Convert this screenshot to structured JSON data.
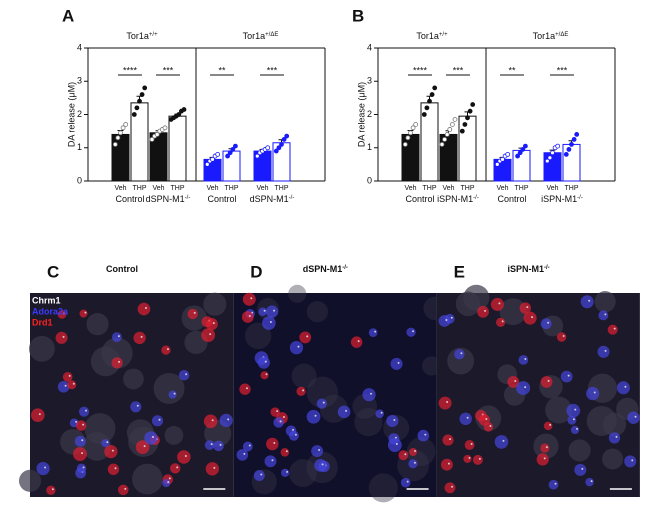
{
  "chart_data": [
    {
      "type": "bar",
      "letter": "A",
      "y_label": "DA release (μM)",
      "ylim": [
        0,
        4
      ],
      "yticks": [
        0,
        1,
        2,
        3,
        4
      ],
      "treatments": [
        "Veh",
        "THP"
      ],
      "groups": [
        {
          "name": "Tor1a",
          "sup": "+/+",
          "color": "#111111",
          "subgroups": [
            {
              "name": "Control",
              "values": [
                1.4,
                2.35
              ],
              "errors": [
                0.12,
                0.2
              ],
              "significance": "****",
              "points": [
                [
                  1.1,
                  1.3,
                  1.45,
                  1.6,
                  1.7
                ],
                [
                  2.0,
                  2.2,
                  2.4,
                  2.6,
                  2.8
                ]
              ]
            },
            {
              "name": "dSPN-M1",
              "sup": "-/-",
              "values": [
                1.45,
                1.95
              ],
              "errors": [
                0.06,
                0.06
              ],
              "significance": "***",
              "points": [
                [
                  1.25,
                  1.35,
                  1.4,
                  1.5,
                  1.55,
                  1.6
                ],
                [
                  1.85,
                  1.9,
                  1.95,
                  2.0,
                  2.1,
                  2.15
                ]
              ]
            }
          ]
        },
        {
          "name": "Tor1a",
          "sup": "+/ΔE",
          "color": "#1a1aff",
          "subgroups": [
            {
              "name": "Control",
              "values": [
                0.65,
                0.9
              ],
              "errors": [
                0.06,
                0.07
              ],
              "significance": "**",
              "points": [
                [
                  0.5,
                  0.6,
                  0.65,
                  0.75,
                  0.8
                ],
                [
                  0.75,
                  0.85,
                  0.95,
                  1.05
                ]
              ]
            },
            {
              "name": "dSPN-M1",
              "sup": "-/-",
              "values": [
                0.9,
                1.15
              ],
              "errors": [
                0.05,
                0.09
              ],
              "significance": "***",
              "points": [
                [
                  0.75,
                  0.85,
                  0.9,
                  0.95,
                  1.0
                ],
                [
                  0.9,
                  1.0,
                  1.1,
                  1.25,
                  1.35
                ]
              ]
            }
          ]
        }
      ]
    },
    {
      "type": "bar",
      "letter": "B",
      "y_label": "DA release (μM)",
      "ylim": [
        0,
        4
      ],
      "yticks": [
        0,
        1,
        2,
        3,
        4
      ],
      "treatments": [
        "Veh",
        "THP"
      ],
      "groups": [
        {
          "name": "Tor1a",
          "sup": "+/+",
          "color": "#111111",
          "subgroups": [
            {
              "name": "Control",
              "values": [
                1.4,
                2.35
              ],
              "errors": [
                0.12,
                0.2
              ],
              "significance": "****",
              "points": [
                [
                  1.1,
                  1.3,
                  1.45,
                  1.6,
                  1.7
                ],
                [
                  2.0,
                  2.2,
                  2.4,
                  2.6,
                  2.8
                ]
              ]
            },
            {
              "name": "iSPN-M1",
              "sup": "-/-",
              "values": [
                1.4,
                1.95
              ],
              "errors": [
                0.11,
                0.13
              ],
              "significance": "***",
              "points": [
                [
                  1.1,
                  1.25,
                  1.4,
                  1.55,
                  1.7,
                  1.85
                ],
                [
                  1.5,
                  1.7,
                  1.9,
                  2.1,
                  2.3
                ]
              ]
            }
          ]
        },
        {
          "name": "Tor1a",
          "sup": "+/ΔE",
          "color": "#1a1aff",
          "subgroups": [
            {
              "name": "Control",
              "values": [
                0.65,
                0.92
              ],
              "errors": [
                0.06,
                0.07
              ],
              "significance": "**",
              "points": [
                [
                  0.5,
                  0.6,
                  0.65,
                  0.75,
                  0.8
                ],
                [
                  0.75,
                  0.85,
                  0.95,
                  1.05
                ]
              ]
            },
            {
              "name": "iSPN-M1",
              "sup": "-/-",
              "values": [
                0.85,
                1.1
              ],
              "errors": [
                0.08,
                0.11
              ],
              "significance": "***",
              "points": [
                [
                  0.6,
                  0.7,
                  0.85,
                  1.0,
                  1.05
                ],
                [
                  0.8,
                  0.95,
                  1.1,
                  1.25,
                  1.4
                ]
              ]
            }
          ]
        }
      ]
    }
  ],
  "images": [
    {
      "letter": "C",
      "title": "Control"
    },
    {
      "letter": "D",
      "title": "dSPN-M1",
      "sup": "-/-"
    },
    {
      "letter": "E",
      "title": "iSPN-M1",
      "sup": "-/-"
    }
  ],
  "channels": [
    {
      "name": "Chrm1",
      "color": "#ffffff"
    },
    {
      "name": "Adora2a",
      "color": "#3a3aff"
    },
    {
      "name": "Drd1",
      "color": "#ff2020"
    }
  ]
}
